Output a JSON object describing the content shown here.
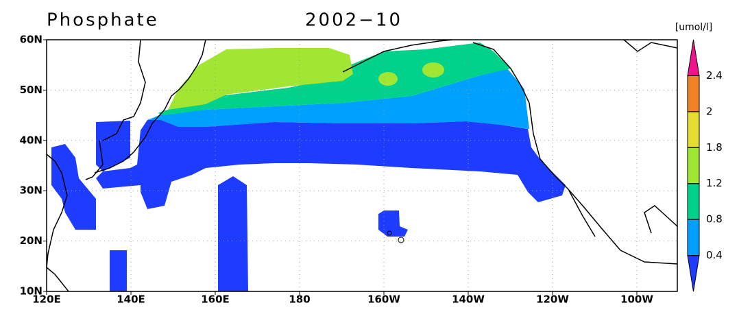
{
  "title": "Phosphate",
  "date": "2002−10",
  "unit": "[umol/l]",
  "x_labels": [
    "120E",
    "140E",
    "160E",
    "180",
    "160W",
    "140W",
    "120W",
    "100W"
  ],
  "y_labels": [
    "60N",
    "50N",
    "40N",
    "30N",
    "20N",
    "10N"
  ],
  "colorbar": {
    "levels": [
      0.4,
      0.8,
      1.2,
      1.8,
      2,
      2.4
    ],
    "colors": [
      "#1e3cff",
      "#00a0ff",
      "#00d28c",
      "#a0e632",
      "#e6dc32",
      "#f08228",
      "#f0148c"
    ]
  }
}
